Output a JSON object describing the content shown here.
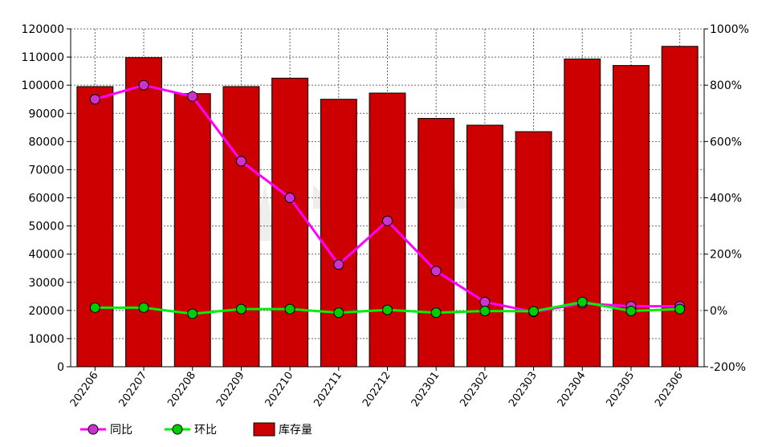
{
  "chart_data": {
    "type": "bar",
    "categories": [
      "202206",
      "202207",
      "202208",
      "202209",
      "202210",
      "202211",
      "202212",
      "202301",
      "202302",
      "202303",
      "202304",
      "202305",
      "202306"
    ],
    "left_axis": {
      "ylim": [
        0,
        120000
      ],
      "ticks": [
        "0",
        "10000",
        "20000",
        "30000",
        "40000",
        "50000",
        "60000",
        "70000",
        "80000",
        "90000",
        "100000",
        "110000",
        "120000"
      ]
    },
    "right_axis": {
      "ylim": [
        -200,
        1000
      ],
      "ticks": [
        "-200%",
        "0%",
        "200%",
        "400%",
        "600%",
        "800%",
        "1000%"
      ]
    },
    "grid": true,
    "legend_position": "bottom-left",
    "series": [
      {
        "name": "库存量",
        "kind": "bar",
        "axis": "left",
        "color": "#cc0000",
        "values": [
          99500,
          109800,
          97000,
          99500,
          102500,
          95000,
          97200,
          88200,
          85800,
          83500,
          109300,
          107000,
          113800
        ]
      },
      {
        "name": "同比",
        "kind": "line",
        "axis": "right",
        "color": "#ff00ff",
        "marker_fill": "#cc33cc",
        "values": [
          750,
          800,
          760,
          530,
          400,
          163,
          318,
          140,
          30,
          -5,
          25,
          15,
          15
        ]
      },
      {
        "name": "环比",
        "kind": "line",
        "axis": "right",
        "color": "#00ee00",
        "marker_fill": "#00cc00",
        "values": [
          10,
          10,
          -12,
          5,
          5,
          -8,
          2,
          -8,
          -2,
          -3,
          30,
          -2,
          5
        ]
      }
    ],
    "legend": [
      "同比",
      "环比",
      "库存量"
    ]
  }
}
